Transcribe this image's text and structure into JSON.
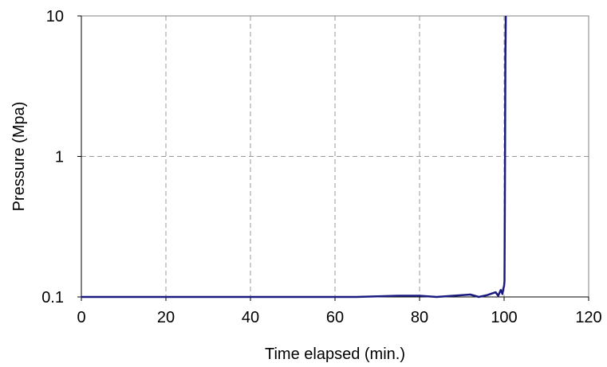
{
  "chart_data": {
    "type": "line",
    "xlabel": "Time elapsed (min.)",
    "ylabel": "Pressure (Mpa)",
    "xlim": [
      0,
      120
    ],
    "ylim": [
      0.1,
      10
    ],
    "yscale": "log",
    "xticks": [
      0,
      20,
      40,
      60,
      80,
      100,
      120
    ],
    "yticks": [
      0.1,
      1,
      10
    ],
    "ytick_labels": [
      "0.1",
      "1",
      "10"
    ],
    "grid": true,
    "legend": "none",
    "series_color": "#1a1a80",
    "series": [
      {
        "x": [
          0,
          20,
          40,
          60,
          65,
          70,
          75,
          80,
          82,
          84,
          86,
          88,
          90,
          92,
          94,
          96,
          98,
          98.6,
          99.2,
          99.6,
          99.8,
          100.0,
          100.1,
          100.2,
          100.3,
          100.4
        ],
        "y": [
          0.1,
          0.1,
          0.1,
          0.1,
          0.1,
          0.101,
          0.102,
          0.102,
          0.101,
          0.1,
          0.101,
          0.102,
          0.103,
          0.104,
          0.1,
          0.103,
          0.108,
          0.102,
          0.112,
          0.105,
          0.114,
          0.12,
          0.13,
          0.8,
          5.0,
          10
        ]
      }
    ]
  }
}
